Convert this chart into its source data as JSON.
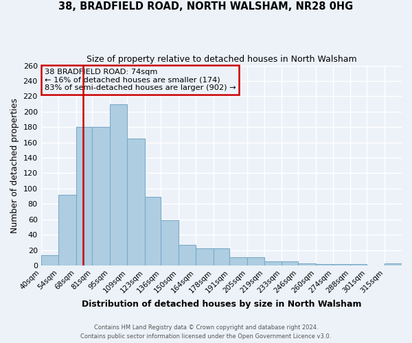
{
  "title1": "38, BRADFIELD ROAD, NORTH WALSHAM, NR28 0HG",
  "title2": "Size of property relative to detached houses in North Walsham",
  "xlabel": "Distribution of detached houses by size in North Walsham",
  "ylabel": "Number of detached properties",
  "bin_labels": [
    "40sqm",
    "54sqm",
    "68sqm",
    "81sqm",
    "95sqm",
    "109sqm",
    "123sqm",
    "136sqm",
    "150sqm",
    "164sqm",
    "178sqm",
    "191sqm",
    "205sqm",
    "219sqm",
    "233sqm",
    "246sqm",
    "260sqm",
    "274sqm",
    "288sqm",
    "301sqm",
    "315sqm"
  ],
  "bin_edges": [
    40,
    54,
    68,
    81,
    95,
    109,
    123,
    136,
    150,
    164,
    178,
    191,
    205,
    219,
    233,
    246,
    260,
    274,
    288,
    301,
    315
  ],
  "bar_widths": [
    14,
    14,
    13,
    14,
    14,
    14,
    13,
    14,
    14,
    14,
    13,
    14,
    14,
    14,
    13,
    14,
    14,
    14,
    13,
    14,
    14
  ],
  "bar_heights": [
    13,
    92,
    180,
    180,
    210,
    165,
    89,
    59,
    27,
    22,
    22,
    11,
    11,
    5,
    5,
    3,
    2,
    2,
    2,
    0,
    3
  ],
  "bar_color": "#aecde1",
  "bar_edge_color": "#7aaac8",
  "vline_x": 74,
  "vline_color": "#cc0000",
  "annotation_text_line1": "38 BRADFIELD ROAD: 74sqm",
  "annotation_text_line2": "← 16% of detached houses are smaller (174)",
  "annotation_text_line3": "83% of semi-detached houses are larger (902) →",
  "annotation_box_color": "#cc0000",
  "ylim": [
    0,
    260
  ],
  "yticks": [
    0,
    20,
    40,
    60,
    80,
    100,
    120,
    140,
    160,
    180,
    200,
    220,
    240,
    260
  ],
  "footer1": "Contains HM Land Registry data © Crown copyright and database right 2024.",
  "footer2": "Contains public sector information licensed under the Open Government Licence v3.0.",
  "background_color": "#edf2f9",
  "grid_color": "#ffffff"
}
